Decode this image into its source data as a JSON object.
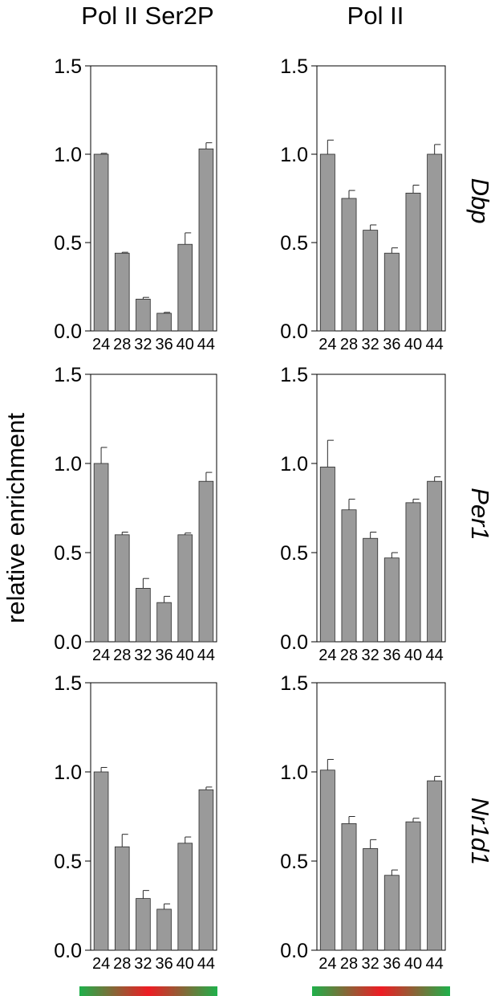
{
  "figure": {
    "column_titles": [
      "Pol II Ser2P",
      "Pol II"
    ],
    "row_labels": [
      "Dbp",
      "Per1",
      "Nr1d1"
    ],
    "ylabel": "relative enrichment",
    "bar_color": "#9a9a9a",
    "gradient_colors": [
      "#1fb04a",
      "#ee1c24",
      "#1fb04a"
    ]
  },
  "chart_data": [
    {
      "type": "bar",
      "gene": "Dbp",
      "antibody": "Pol II Ser2P",
      "categories": [
        "24",
        "28",
        "32",
        "36",
        "40",
        "44"
      ],
      "values": [
        1.0,
        0.44,
        0.18,
        0.1,
        0.49,
        1.03
      ],
      "errors": [
        0.005,
        0.005,
        0.01,
        0.005,
        0.065,
        0.035
      ],
      "ylim": [
        0,
        1.5
      ],
      "yticks": [
        "0.0",
        "0.5",
        "1.0",
        "1.5"
      ]
    },
    {
      "type": "bar",
      "gene": "Dbp",
      "antibody": "Pol II",
      "categories": [
        "24",
        "28",
        "32",
        "36",
        "40",
        "44"
      ],
      "values": [
        1.0,
        0.75,
        0.57,
        0.44,
        0.78,
        1.0
      ],
      "errors": [
        0.08,
        0.045,
        0.03,
        0.03,
        0.045,
        0.055
      ],
      "ylim": [
        0,
        1.5
      ],
      "yticks": [
        "0.0",
        "0.5",
        "1.0",
        "1.5"
      ]
    },
    {
      "type": "bar",
      "gene": "Per1",
      "antibody": "Pol II Ser2P",
      "categories": [
        "24",
        "28",
        "32",
        "36",
        "40",
        "44"
      ],
      "values": [
        1.0,
        0.6,
        0.3,
        0.22,
        0.6,
        0.9
      ],
      "errors": [
        0.09,
        0.015,
        0.055,
        0.035,
        0.01,
        0.05
      ],
      "ylim": [
        0,
        1.5
      ],
      "yticks": [
        "0.0",
        "0.5",
        "1.0",
        "1.5"
      ]
    },
    {
      "type": "bar",
      "gene": "Per1",
      "antibody": "Pol II",
      "categories": [
        "24",
        "28",
        "32",
        "36",
        "40",
        "44"
      ],
      "values": [
        0.98,
        0.74,
        0.58,
        0.47,
        0.78,
        0.9
      ],
      "errors": [
        0.15,
        0.06,
        0.035,
        0.03,
        0.02,
        0.025
      ],
      "ylim": [
        0,
        1.5
      ],
      "yticks": [
        "0.0",
        "0.5",
        "1.0",
        "1.5"
      ]
    },
    {
      "type": "bar",
      "gene": "Nr1d1",
      "antibody": "Pol II Ser2P",
      "categories": [
        "24",
        "28",
        "32",
        "36",
        "40",
        "44"
      ],
      "values": [
        1.0,
        0.58,
        0.29,
        0.23,
        0.6,
        0.9
      ],
      "errors": [
        0.025,
        0.07,
        0.045,
        0.03,
        0.035,
        0.015
      ],
      "ylim": [
        0,
        1.5
      ],
      "yticks": [
        "0.0",
        "0.5",
        "1.0",
        "1.5"
      ]
    },
    {
      "type": "bar",
      "gene": "Nr1d1",
      "antibody": "Pol II",
      "categories": [
        "24",
        "28",
        "32",
        "36",
        "40",
        "44"
      ],
      "values": [
        1.01,
        0.71,
        0.57,
        0.42,
        0.72,
        0.95
      ],
      "errors": [
        0.06,
        0.04,
        0.05,
        0.03,
        0.02,
        0.025
      ],
      "ylim": [
        0,
        1.5
      ],
      "yticks": [
        "0.0",
        "0.5",
        "1.0",
        "1.5"
      ]
    }
  ]
}
